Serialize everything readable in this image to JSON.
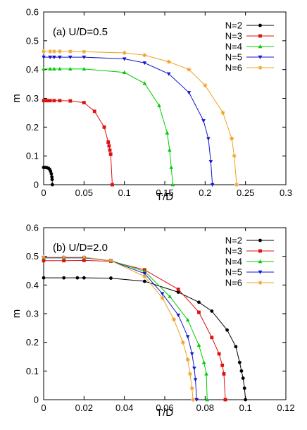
{
  "chart_data": [
    {
      "type": "line",
      "title": "(a) U/D=0.5",
      "xlabel": "T/D",
      "ylabel": "m",
      "xlim": [
        0,
        0.3
      ],
      "ylim": [
        0,
        0.6
      ],
      "xticks": [
        0,
        0.05,
        0.1,
        0.15,
        0.2,
        0.25,
        0.3
      ],
      "xtick_labels": [
        "0",
        "0.05",
        "0.1",
        "0.15",
        "0.2",
        "0.25",
        "0.3"
      ],
      "yticks": [
        0,
        0.1,
        0.2,
        0.3,
        0.4,
        0.5,
        0.6
      ],
      "ytick_labels": [
        "0",
        "0.1",
        "0.2",
        "0.3",
        "0.4",
        "0.5",
        "0.6"
      ],
      "legend_position": "top-right",
      "series": [
        {
          "name": "N=2",
          "color": "#000000",
          "marker": "circle",
          "points": [
            [
              0.0,
              0.06
            ],
            [
              0.002,
              0.06
            ],
            [
              0.004,
              0.059
            ],
            [
              0.006,
              0.057
            ],
            [
              0.0075,
              0.053
            ],
            [
              0.0085,
              0.047
            ],
            [
              0.0095,
              0.038
            ],
            [
              0.0102,
              0.027
            ],
            [
              0.0105,
              0.018
            ],
            [
              0.0108,
              0.0
            ]
          ]
        },
        {
          "name": "N=3",
          "color": "#dd1111",
          "marker": "square",
          "points": [
            [
              0.0,
              0.292
            ],
            [
              0.004,
              0.292
            ],
            [
              0.008,
              0.292
            ],
            [
              0.013,
              0.292
            ],
            [
              0.02,
              0.292
            ],
            [
              0.033,
              0.291
            ],
            [
              0.05,
              0.285
            ],
            [
              0.063,
              0.255
            ],
            [
              0.075,
              0.2
            ],
            [
              0.08,
              0.148
            ],
            [
              0.081,
              0.135
            ],
            [
              0.082,
              0.12
            ],
            [
              0.083,
              0.106
            ],
            [
              0.085,
              0.0
            ]
          ]
        },
        {
          "name": "N=4",
          "color": "#00cc00",
          "marker": "triangle-up",
          "points": [
            [
              0.0,
              0.402
            ],
            [
              0.008,
              0.402
            ],
            [
              0.013,
              0.402
            ],
            [
              0.02,
              0.402
            ],
            [
              0.033,
              0.402
            ],
            [
              0.05,
              0.402
            ],
            [
              0.1,
              0.39
            ],
            [
              0.125,
              0.352
            ],
            [
              0.143,
              0.275
            ],
            [
              0.153,
              0.18
            ],
            [
              0.156,
              0.12
            ],
            [
              0.158,
              0.06
            ],
            [
              0.16,
              0.0
            ]
          ]
        },
        {
          "name": "N=5",
          "color": "#1515cc",
          "marker": "triangle-down",
          "points": [
            [
              0.0,
              0.443
            ],
            [
              0.008,
              0.443
            ],
            [
              0.013,
              0.443
            ],
            [
              0.02,
              0.443
            ],
            [
              0.033,
              0.443
            ],
            [
              0.05,
              0.443
            ],
            [
              0.1,
              0.437
            ],
            [
              0.125,
              0.423
            ],
            [
              0.155,
              0.385
            ],
            [
              0.18,
              0.32
            ],
            [
              0.198,
              0.222
            ],
            [
              0.204,
              0.16
            ],
            [
              0.207,
              0.08
            ],
            [
              0.209,
              0.0
            ]
          ]
        },
        {
          "name": "N=6",
          "color": "#f0a020",
          "marker": "star",
          "points": [
            [
              0.0,
              0.463
            ],
            [
              0.008,
              0.463
            ],
            [
              0.013,
              0.463
            ],
            [
              0.02,
              0.463
            ],
            [
              0.033,
              0.463
            ],
            [
              0.05,
              0.462
            ],
            [
              0.1,
              0.458
            ],
            [
              0.125,
              0.45
            ],
            [
              0.155,
              0.427
            ],
            [
              0.18,
              0.4
            ],
            [
              0.2,
              0.345
            ],
            [
              0.222,
              0.25
            ],
            [
              0.233,
              0.16
            ],
            [
              0.236,
              0.1
            ],
            [
              0.239,
              0.0
            ]
          ]
        }
      ]
    },
    {
      "type": "line",
      "title": "(b) U/D=2.0",
      "xlabel": "T/D",
      "ylabel": "m",
      "xlim": [
        0,
        0.12
      ],
      "ylim": [
        0,
        0.6
      ],
      "xticks": [
        0,
        0.02,
        0.04,
        0.06,
        0.08,
        0.1,
        0.12
      ],
      "xtick_labels": [
        "0",
        "0.02",
        "0.04",
        "0.06",
        "0.08",
        "0.1",
        "0.12"
      ],
      "yticks": [
        0,
        0.1,
        0.2,
        0.3,
        0.4,
        0.5,
        0.6
      ],
      "ytick_labels": [
        "0",
        "0.1",
        "0.2",
        "0.3",
        "0.4",
        "0.5",
        "0.6"
      ],
      "legend_position": "top-right",
      "series": [
        {
          "name": "N=2",
          "color": "#000000",
          "marker": "circle",
          "points": [
            [
              0.0,
              0.425
            ],
            [
              0.01,
              0.425
            ],
            [
              0.0167,
              0.425
            ],
            [
              0.02,
              0.425
            ],
            [
              0.0333,
              0.424
            ],
            [
              0.05,
              0.413
            ],
            [
              0.0667,
              0.375
            ],
            [
              0.0769,
              0.34
            ],
            [
              0.0833,
              0.309
            ],
            [
              0.0909,
              0.243
            ],
            [
              0.0952,
              0.185
            ],
            [
              0.0971,
              0.13
            ],
            [
              0.098,
              0.1
            ],
            [
              0.0988,
              0.075
            ],
            [
              0.0995,
              0.04
            ],
            [
              0.1,
              0.0
            ]
          ]
        },
        {
          "name": "N=3",
          "color": "#dd1111",
          "marker": "square",
          "points": [
            [
              0.0,
              0.485
            ],
            [
              0.01,
              0.485
            ],
            [
              0.02,
              0.486
            ],
            [
              0.0333,
              0.483
            ],
            [
              0.05,
              0.453
            ],
            [
              0.0667,
              0.385
            ],
            [
              0.0769,
              0.305
            ],
            [
              0.0833,
              0.217
            ],
            [
              0.0869,
              0.16
            ],
            [
              0.0885,
              0.12
            ],
            [
              0.0893,
              0.09
            ],
            [
              0.09,
              0.0
            ]
          ]
        },
        {
          "name": "N=4",
          "color": "#00cc00",
          "marker": "triangle-up",
          "points": [
            [
              0.0,
              0.495
            ],
            [
              0.01,
              0.495
            ],
            [
              0.02,
              0.495
            ],
            [
              0.0333,
              0.485
            ],
            [
              0.05,
              0.448
            ],
            [
              0.0625,
              0.36
            ],
            [
              0.0714,
              0.278
            ],
            [
              0.0769,
              0.19
            ],
            [
              0.0794,
              0.13
            ],
            [
              0.0806,
              0.09
            ],
            [
              0.081,
              0.0
            ]
          ]
        },
        {
          "name": "N=5",
          "color": "#1515cc",
          "marker": "triangle-down",
          "points": [
            [
              0.0,
              0.495
            ],
            [
              0.01,
              0.495
            ],
            [
              0.02,
              0.495
            ],
            [
              0.0333,
              0.485
            ],
            [
              0.05,
              0.44
            ],
            [
              0.0588,
              0.37
            ],
            [
              0.0667,
              0.295
            ],
            [
              0.0714,
              0.22
            ],
            [
              0.0735,
              0.16
            ],
            [
              0.0746,
              0.11
            ],
            [
              0.0752,
              0.07
            ],
            [
              0.0758,
              0.0
            ]
          ]
        },
        {
          "name": "N=6",
          "color": "#f0a020",
          "marker": "star",
          "points": [
            [
              0.0,
              0.497
            ],
            [
              0.01,
              0.497
            ],
            [
              0.02,
              0.497
            ],
            [
              0.0333,
              0.485
            ],
            [
              0.05,
              0.43
            ],
            [
              0.0588,
              0.355
            ],
            [
              0.0645,
              0.28
            ],
            [
              0.069,
              0.2
            ],
            [
              0.0714,
              0.14
            ],
            [
              0.0725,
              0.09
            ],
            [
              0.0735,
              0.04
            ],
            [
              0.074,
              0.0
            ]
          ]
        }
      ]
    }
  ]
}
